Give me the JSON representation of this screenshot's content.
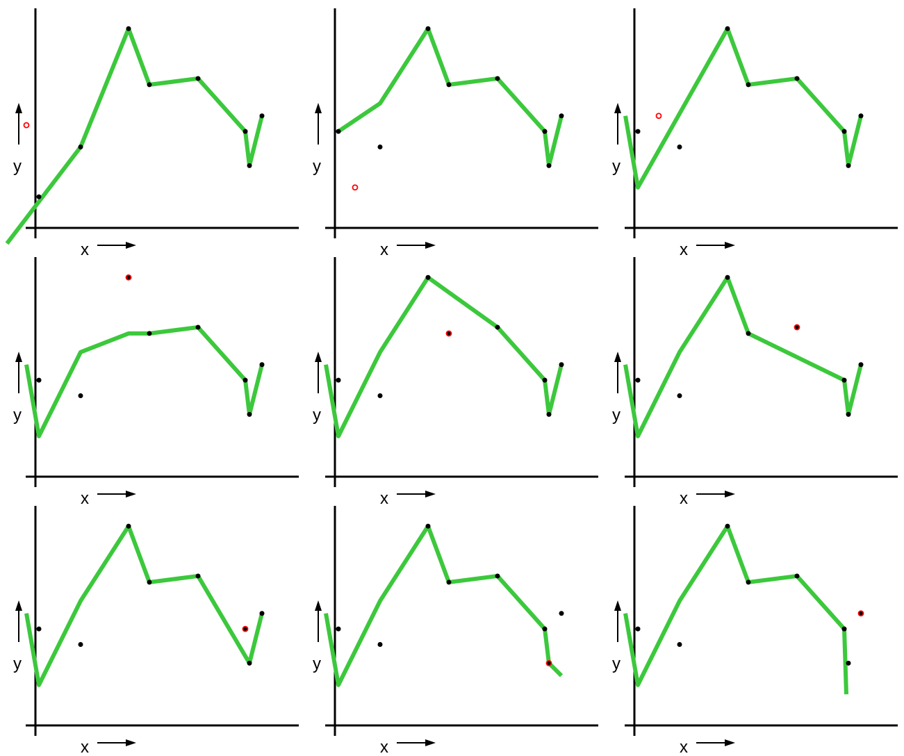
{
  "figure": {
    "colors": {
      "line": "#3cc83c",
      "point": "#000000",
      "outlier": "#ff0000",
      "axis": "#000000"
    },
    "x_axis_label": "x",
    "y_axis_label": "y"
  },
  "chart_data": [
    {
      "type": "line",
      "points": [
        [
          1,
          3
        ],
        [
          2,
          4.6
        ],
        [
          3,
          8.4
        ],
        [
          4,
          6.6
        ],
        [
          5,
          6.8
        ],
        [
          6,
          5.1
        ],
        [
          7,
          4.0
        ],
        [
          8,
          5.6
        ]
      ],
      "fit": [
        [
          -0.2,
          1.5
        ],
        [
          2,
          4.6
        ],
        [
          3,
          8.4
        ],
        [
          4,
          6.6
        ],
        [
          5,
          6.8
        ],
        [
          6,
          5.1
        ],
        [
          7,
          4.0
        ],
        [
          8,
          5.6
        ]
      ],
      "outlier": [
        0.5,
        5.3
      ]
    },
    {
      "type": "line",
      "points": [
        [
          1,
          5.1
        ],
        [
          2,
          4.6
        ],
        [
          3,
          8.4
        ],
        [
          4,
          6.6
        ],
        [
          5,
          6.8
        ],
        [
          6,
          5.1
        ],
        [
          7,
          4.0
        ],
        [
          8,
          5.6
        ]
      ],
      "fit": [
        [
          1,
          5.1
        ],
        [
          2,
          6.0
        ],
        [
          3,
          8.4
        ],
        [
          4,
          6.6
        ],
        [
          5,
          6.8
        ],
        [
          6,
          5.1
        ],
        [
          7,
          4.0
        ],
        [
          8,
          5.6
        ]
      ],
      "outlier": [
        1.4,
        3.3
      ]
    },
    {
      "type": "line",
      "points": [
        [
          1,
          5.1
        ],
        [
          2,
          4.6
        ],
        [
          3,
          8.4
        ],
        [
          4,
          6.6
        ],
        [
          5,
          6.8
        ],
        [
          6,
          5.1
        ],
        [
          7,
          4.0
        ],
        [
          8,
          5.6
        ]
      ],
      "fit": [
        [
          0.5,
          5.6
        ],
        [
          1,
          3.3
        ],
        [
          3,
          8.4
        ],
        [
          4,
          6.6
        ],
        [
          5,
          6.8
        ],
        [
          6,
          5.1
        ],
        [
          7,
          4.0
        ],
        [
          8,
          5.6
        ]
      ],
      "outlier": [
        1.5,
        5.6
      ]
    },
    {
      "type": "line",
      "points": [
        [
          1,
          5.1
        ],
        [
          2,
          4.6
        ],
        [
          3,
          8.4
        ],
        [
          4,
          6.6
        ],
        [
          5,
          6.8
        ],
        [
          6,
          5.1
        ],
        [
          7,
          4.0
        ],
        [
          8,
          5.6
        ]
      ],
      "fit": [
        [
          0.5,
          5.6
        ],
        [
          1,
          3.3
        ],
        [
          2,
          6.0
        ],
        [
          3,
          6.6
        ],
        [
          4,
          6.6
        ],
        [
          5,
          6.8
        ],
        [
          6,
          5.1
        ],
        [
          7,
          4.0
        ],
        [
          8,
          5.6
        ]
      ],
      "outlier": [
        3,
        8.4
      ]
    },
    {
      "type": "line",
      "points": [
        [
          1,
          5.1
        ],
        [
          2,
          4.6
        ],
        [
          3,
          8.4
        ],
        [
          4,
          6.6
        ],
        [
          5,
          6.8
        ],
        [
          6,
          5.1
        ],
        [
          7,
          4.0
        ],
        [
          8,
          5.6
        ]
      ],
      "fit": [
        [
          0.5,
          5.6
        ],
        [
          1,
          3.3
        ],
        [
          2,
          6.0
        ],
        [
          3,
          8.4
        ],
        [
          5,
          6.8
        ],
        [
          6,
          5.1
        ],
        [
          7,
          4.0
        ],
        [
          8,
          5.6
        ]
      ],
      "outlier": [
        4,
        6.6
      ]
    },
    {
      "type": "line",
      "points": [
        [
          1,
          5.1
        ],
        [
          2,
          4.6
        ],
        [
          3,
          8.4
        ],
        [
          4,
          6.6
        ],
        [
          5,
          6.8
        ],
        [
          6,
          5.1
        ],
        [
          7,
          4.0
        ],
        [
          8,
          5.6
        ]
      ],
      "fit": [
        [
          0.5,
          5.6
        ],
        [
          1,
          3.3
        ],
        [
          2,
          6.0
        ],
        [
          3,
          8.4
        ],
        [
          4,
          6.6
        ],
        [
          6,
          5.1
        ],
        [
          7,
          4.0
        ],
        [
          8,
          5.6
        ]
      ],
      "outlier": [
        5,
        6.8
      ]
    },
    {
      "type": "line",
      "points": [
        [
          1,
          5.1
        ],
        [
          2,
          4.6
        ],
        [
          3,
          8.4
        ],
        [
          4,
          6.6
        ],
        [
          5,
          6.8
        ],
        [
          6,
          5.1
        ],
        [
          7,
          4.0
        ],
        [
          8,
          5.6
        ]
      ],
      "fit": [
        [
          0.5,
          5.6
        ],
        [
          1,
          3.3
        ],
        [
          2,
          6.0
        ],
        [
          3,
          8.4
        ],
        [
          4,
          6.6
        ],
        [
          5,
          6.8
        ],
        [
          7,
          4.0
        ],
        [
          8,
          5.6
        ]
      ],
      "outlier": [
        6,
        5.1
      ]
    },
    {
      "type": "line",
      "points": [
        [
          1,
          5.1
        ],
        [
          2,
          4.6
        ],
        [
          3,
          8.4
        ],
        [
          4,
          6.6
        ],
        [
          5,
          6.8
        ],
        [
          6,
          5.1
        ],
        [
          7,
          4.0
        ],
        [
          8,
          5.6
        ]
      ],
      "fit": [
        [
          0.5,
          5.6
        ],
        [
          1,
          3.3
        ],
        [
          2,
          6.0
        ],
        [
          3,
          8.4
        ],
        [
          4,
          6.6
        ],
        [
          5,
          6.8
        ],
        [
          6,
          5.1
        ],
        [
          7,
          4.0
        ],
        [
          8,
          3.6
        ]
      ],
      "outlier": [
        7,
        4.0
      ]
    },
    {
      "type": "line",
      "points": [
        [
          1,
          5.1
        ],
        [
          2,
          4.6
        ],
        [
          3,
          8.4
        ],
        [
          4,
          6.6
        ],
        [
          5,
          6.8
        ],
        [
          6,
          5.1
        ],
        [
          7,
          4.0
        ],
        [
          8,
          5.6
        ]
      ],
      "fit": [
        [
          0.5,
          5.6
        ],
        [
          1,
          3.3
        ],
        [
          2,
          6.0
        ],
        [
          3,
          8.4
        ],
        [
          4,
          6.6
        ],
        [
          5,
          6.8
        ],
        [
          6,
          5.1
        ],
        [
          6.5,
          3.0
        ]
      ],
      "outlier": [
        8,
        5.6
      ]
    }
  ]
}
